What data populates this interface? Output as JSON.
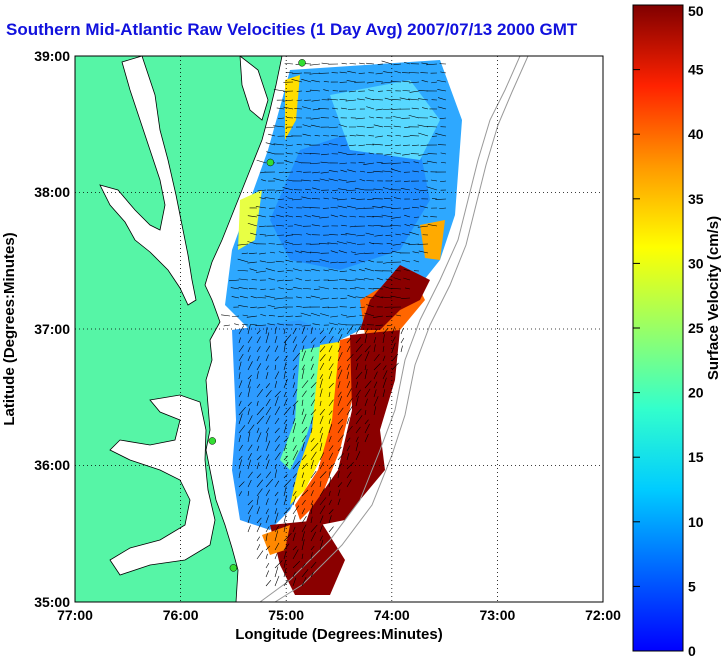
{
  "title": "Southern Mid-Atlantic Raw Velocities (1 Day Avg) 2007/07/13 2000 GMT",
  "xaxis": {
    "label": "Longitude (Degrees:Minutes)",
    "ticks": [
      "77:00",
      "76:00",
      "75:00",
      "74:00",
      "73:00",
      "72:00"
    ],
    "range": [
      -77,
      -72
    ]
  },
  "yaxis": {
    "label": "Latitude (Degrees:Minutes)",
    "ticks": [
      "35:00",
      "36:00",
      "37:00",
      "38:00",
      "39:00"
    ],
    "range": [
      35,
      39
    ]
  },
  "colorbar": {
    "label": "Surface Velocity (cm/s)",
    "ticks": [
      "0",
      "5",
      "10",
      "15",
      "20",
      "25",
      "30",
      "35",
      "40",
      "45",
      "50"
    ],
    "range": [
      0,
      50
    ],
    "colormap": "jet"
  },
  "colors": {
    "land": "#56f5a6",
    "water": "#ffffff",
    "title": "#1111dd",
    "grid": "#000000"
  },
  "stations": [
    {
      "lon": -74.85,
      "lat": 38.95
    },
    {
      "lon": -75.15,
      "lat": 38.22
    },
    {
      "lon": -75.7,
      "lat": 36.18
    },
    {
      "lon": -75.5,
      "lat": 35.25
    }
  ]
}
